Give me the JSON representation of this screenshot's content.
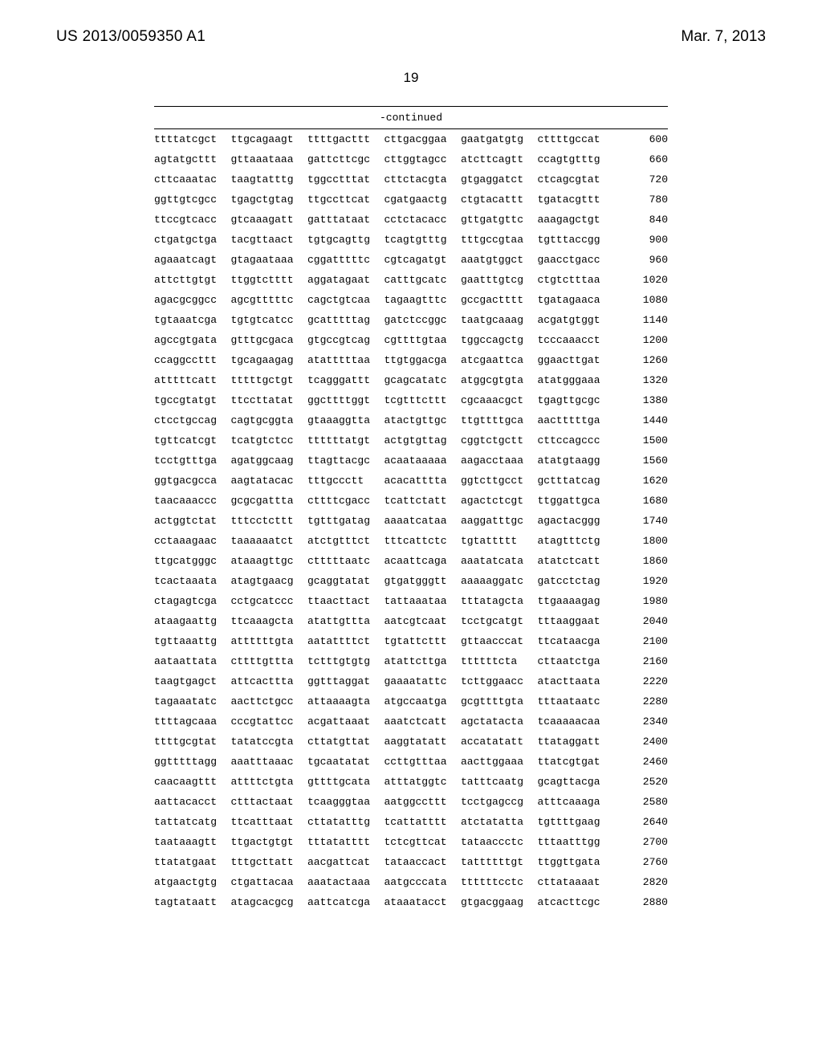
{
  "header": {
    "publication_number": "US 2013/0059350 A1",
    "publication_date": "Mar. 7, 2013"
  },
  "page_number": "19",
  "sequence_block": {
    "continued_label": "-continued",
    "font_family": "Courier New",
    "font_size_pt": 10,
    "text_color": "#000000",
    "rule_color": "#000000",
    "background_color": "#ffffff",
    "chunk_count_per_row": 6,
    "chars_per_chunk": 10,
    "rows": [
      {
        "chunks": [
          "ttttatcgct",
          "ttgcagaagt",
          "ttttgacttt",
          "cttgacggaa",
          "gaatgatgtg",
          "cttttgccat"
        ],
        "pos": "600"
      },
      {
        "chunks": [
          "agtatgcttt",
          "gttaaataaa",
          "gattcttcgc",
          "cttggtagcc",
          "atcttcagtt",
          "ccagtgtttg"
        ],
        "pos": "660"
      },
      {
        "chunks": [
          "cttcaaatac",
          "taagtatttg",
          "tggcctttat",
          "cttctacgta",
          "gtgaggatct",
          "ctcagcgtat"
        ],
        "pos": "720"
      },
      {
        "chunks": [
          "ggttgtcgcc",
          "tgagctgtag",
          "ttgccttcat",
          "cgatgaactg",
          "ctgtacattt",
          "tgatacgttt"
        ],
        "pos": "780"
      },
      {
        "chunks": [
          "ttccgtcacc",
          "gtcaaagatt",
          "gatttataat",
          "cctctacacc",
          "gttgatgttc",
          "aaagagctgt"
        ],
        "pos": "840"
      },
      {
        "chunks": [
          "ctgatgctga",
          "tacgttaact",
          "tgtgcagttg",
          "tcagtgtttg",
          "tttgccgtaa",
          "tgtttaccgg"
        ],
        "pos": "900"
      },
      {
        "chunks": [
          "agaaatcagt",
          "gtagaataaa",
          "cggatttttc",
          "cgtcagatgt",
          "aaatgtggct",
          "gaacctgacc"
        ],
        "pos": "960"
      },
      {
        "chunks": [
          "attcttgtgt",
          "ttggtctttt",
          "aggatagaat",
          "catttgcatc",
          "gaatttgtcg",
          "ctgtctttaa"
        ],
        "pos": "1020"
      },
      {
        "chunks": [
          "agacgcggcc",
          "agcgtttttc",
          "cagctgtcaa",
          "tagaagtttc",
          "gccgactttt",
          "tgatagaaca"
        ],
        "pos": "1080"
      },
      {
        "chunks": [
          "tgtaaatcga",
          "tgtgtcatcc",
          "gcatttttag",
          "gatctccggc",
          "taatgcaaag",
          "acgatgtggt"
        ],
        "pos": "1140"
      },
      {
        "chunks": [
          "agccgtgata",
          "gtttgcgaca",
          "gtgccgtcag",
          "cgttttgtaa",
          "tggccagctg",
          "tcccaaacct"
        ],
        "pos": "1200"
      },
      {
        "chunks": [
          "ccaggccttt",
          "tgcagaagag",
          "atatttttaa",
          "ttgtggacga",
          "atcgaattca",
          "ggaacttgat"
        ],
        "pos": "1260"
      },
      {
        "chunks": [
          "atttttcatt",
          "tttttgctgt",
          "tcagggattt",
          "gcagcatatc",
          "atggcgtgta",
          "atatgggaaa"
        ],
        "pos": "1320"
      },
      {
        "chunks": [
          "tgccgtatgt",
          "ttccttatat",
          "ggcttttggt",
          "tcgtttcttt",
          "cgcaaacgct",
          "tgagttgcgc"
        ],
        "pos": "1380"
      },
      {
        "chunks": [
          "ctcctgccag",
          "cagtgcggta",
          "gtaaaggtta",
          "atactgttgc",
          "ttgttttgca",
          "aactttttga"
        ],
        "pos": "1440"
      },
      {
        "chunks": [
          "tgttcatcgt",
          "tcatgtctcc",
          "ttttttatgt",
          "actgtgttag",
          "cggtctgctt",
          "cttccagccc"
        ],
        "pos": "1500"
      },
      {
        "chunks": [
          "tcctgtttga",
          "agatggcaag",
          "ttagttacgc",
          "acaataaaaa",
          "aagacctaaa",
          "atatgtaagg"
        ],
        "pos": "1560"
      },
      {
        "chunks": [
          "ggtgacgcca",
          "aagtatacac",
          "tttgccctt ",
          "acacatttta",
          "ggtcttgcct",
          "gctttatcag"
        ],
        "pos": "1620"
      },
      {
        "chunks": [
          "taacaaaccc",
          "gcgcgattta",
          "cttttcgacc",
          "tcattctatt",
          "agactctcgt",
          "ttggattgca"
        ],
        "pos": "1680"
      },
      {
        "chunks": [
          "actggtctat",
          "tttcctcttt",
          "tgtttgatag",
          "aaaatcataa",
          "aaggatttgc",
          "agactacggg"
        ],
        "pos": "1740"
      },
      {
        "chunks": [
          "cctaaagaac",
          "taaaaaatct",
          "atctgtttct",
          "tttcattctc",
          "tgtattttt ",
          "atagtttctg"
        ],
        "pos": "1800"
      },
      {
        "chunks": [
          "ttgcatgggc",
          "ataaagttgc",
          "ctttttaatc",
          "acaattcaga",
          "aaatatcata",
          "atatctcatt"
        ],
        "pos": "1860"
      },
      {
        "chunks": [
          "tcactaaata",
          "atagtgaacg",
          "gcaggtatat",
          "gtgatgggtt",
          "aaaaaggatc",
          "gatcctctag"
        ],
        "pos": "1920"
      },
      {
        "chunks": [
          "ctagagtcga",
          "cctgcatccc",
          "ttaacttact",
          "tattaaataa",
          "tttatagcta",
          "ttgaaaagag"
        ],
        "pos": "1980"
      },
      {
        "chunks": [
          "ataagaattg",
          "ttcaaagcta",
          "atattgttta",
          "aatcgtcaat",
          "tcctgcatgt",
          "tttaaggaat"
        ],
        "pos": "2040"
      },
      {
        "chunks": [
          "tgttaaattg",
          "attttttgta",
          "aatattttct",
          "tgtattcttt",
          "gttaacccat",
          "ttcataacga"
        ],
        "pos": "2100"
      },
      {
        "chunks": [
          "aataattata",
          "cttttgttta",
          "tctttgtgtg",
          "atattcttga",
          "ttttttcta ",
          "cttaatctga"
        ],
        "pos": "2160"
      },
      {
        "chunks": [
          "taagtgagct",
          "attcacttta",
          "ggtttaggat",
          "gaaaatattc",
          "tcttggaacc",
          "atacttaata"
        ],
        "pos": "2220"
      },
      {
        "chunks": [
          "tagaaatatc",
          "aacttctgcc",
          "attaaaagta",
          "atgccaatga",
          "gcgttttgta",
          "tttaataatc"
        ],
        "pos": "2280"
      },
      {
        "chunks": [
          "ttttagcaaa",
          "cccgtattcc",
          "acgattaaat",
          "aaatctcatt",
          "agctatacta",
          "tcaaaaacaa"
        ],
        "pos": "2340"
      },
      {
        "chunks": [
          "ttttgcgtat",
          "tatatccgta",
          "cttatgttat",
          "aaggtatatt",
          "accatatatt",
          "ttataggatt"
        ],
        "pos": "2400"
      },
      {
        "chunks": [
          "ggtttttagg",
          "aaatttaaac",
          "tgcaatatat",
          "ccttgtttaa",
          "aacttggaaa",
          "ttatcgtgat"
        ],
        "pos": "2460"
      },
      {
        "chunks": [
          "caacaagttt",
          "attttctgta",
          "gttttgcata",
          "atttatggtc",
          "tatttcaatg",
          "gcagttacga"
        ],
        "pos": "2520"
      },
      {
        "chunks": [
          "aattacacct",
          "ctttactaat",
          "tcaagggtaa",
          "aatggccttt",
          "tcctgagccg",
          "atttcaaaga"
        ],
        "pos": "2580"
      },
      {
        "chunks": [
          "tattatcatg",
          "ttcatttaat",
          "cttatatttg",
          "tcattatttt",
          "atctatatta",
          "tgttttgaag"
        ],
        "pos": "2640"
      },
      {
        "chunks": [
          "taataaagtt",
          "ttgactgtgt",
          "tttatatttt",
          "tctcgttcat",
          "tataaccctc",
          "tttaatttgg"
        ],
        "pos": "2700"
      },
      {
        "chunks": [
          "ttatatgaat",
          "tttgcttatt",
          "aacgattcat",
          "tataaccact",
          "tattttttgt",
          "ttggttgata"
        ],
        "pos": "2760"
      },
      {
        "chunks": [
          "atgaactgtg",
          "ctgattacaa",
          "aaatactaaa",
          "aatgcccata",
          "ttttttcctc",
          "cttataaaat"
        ],
        "pos": "2820"
      },
      {
        "chunks": [
          "tagtataatt",
          "atagcacgcg",
          "aattcatcga",
          "ataaatacct",
          "gtgacggaag",
          "atcacttcgc"
        ],
        "pos": "2880"
      }
    ]
  }
}
